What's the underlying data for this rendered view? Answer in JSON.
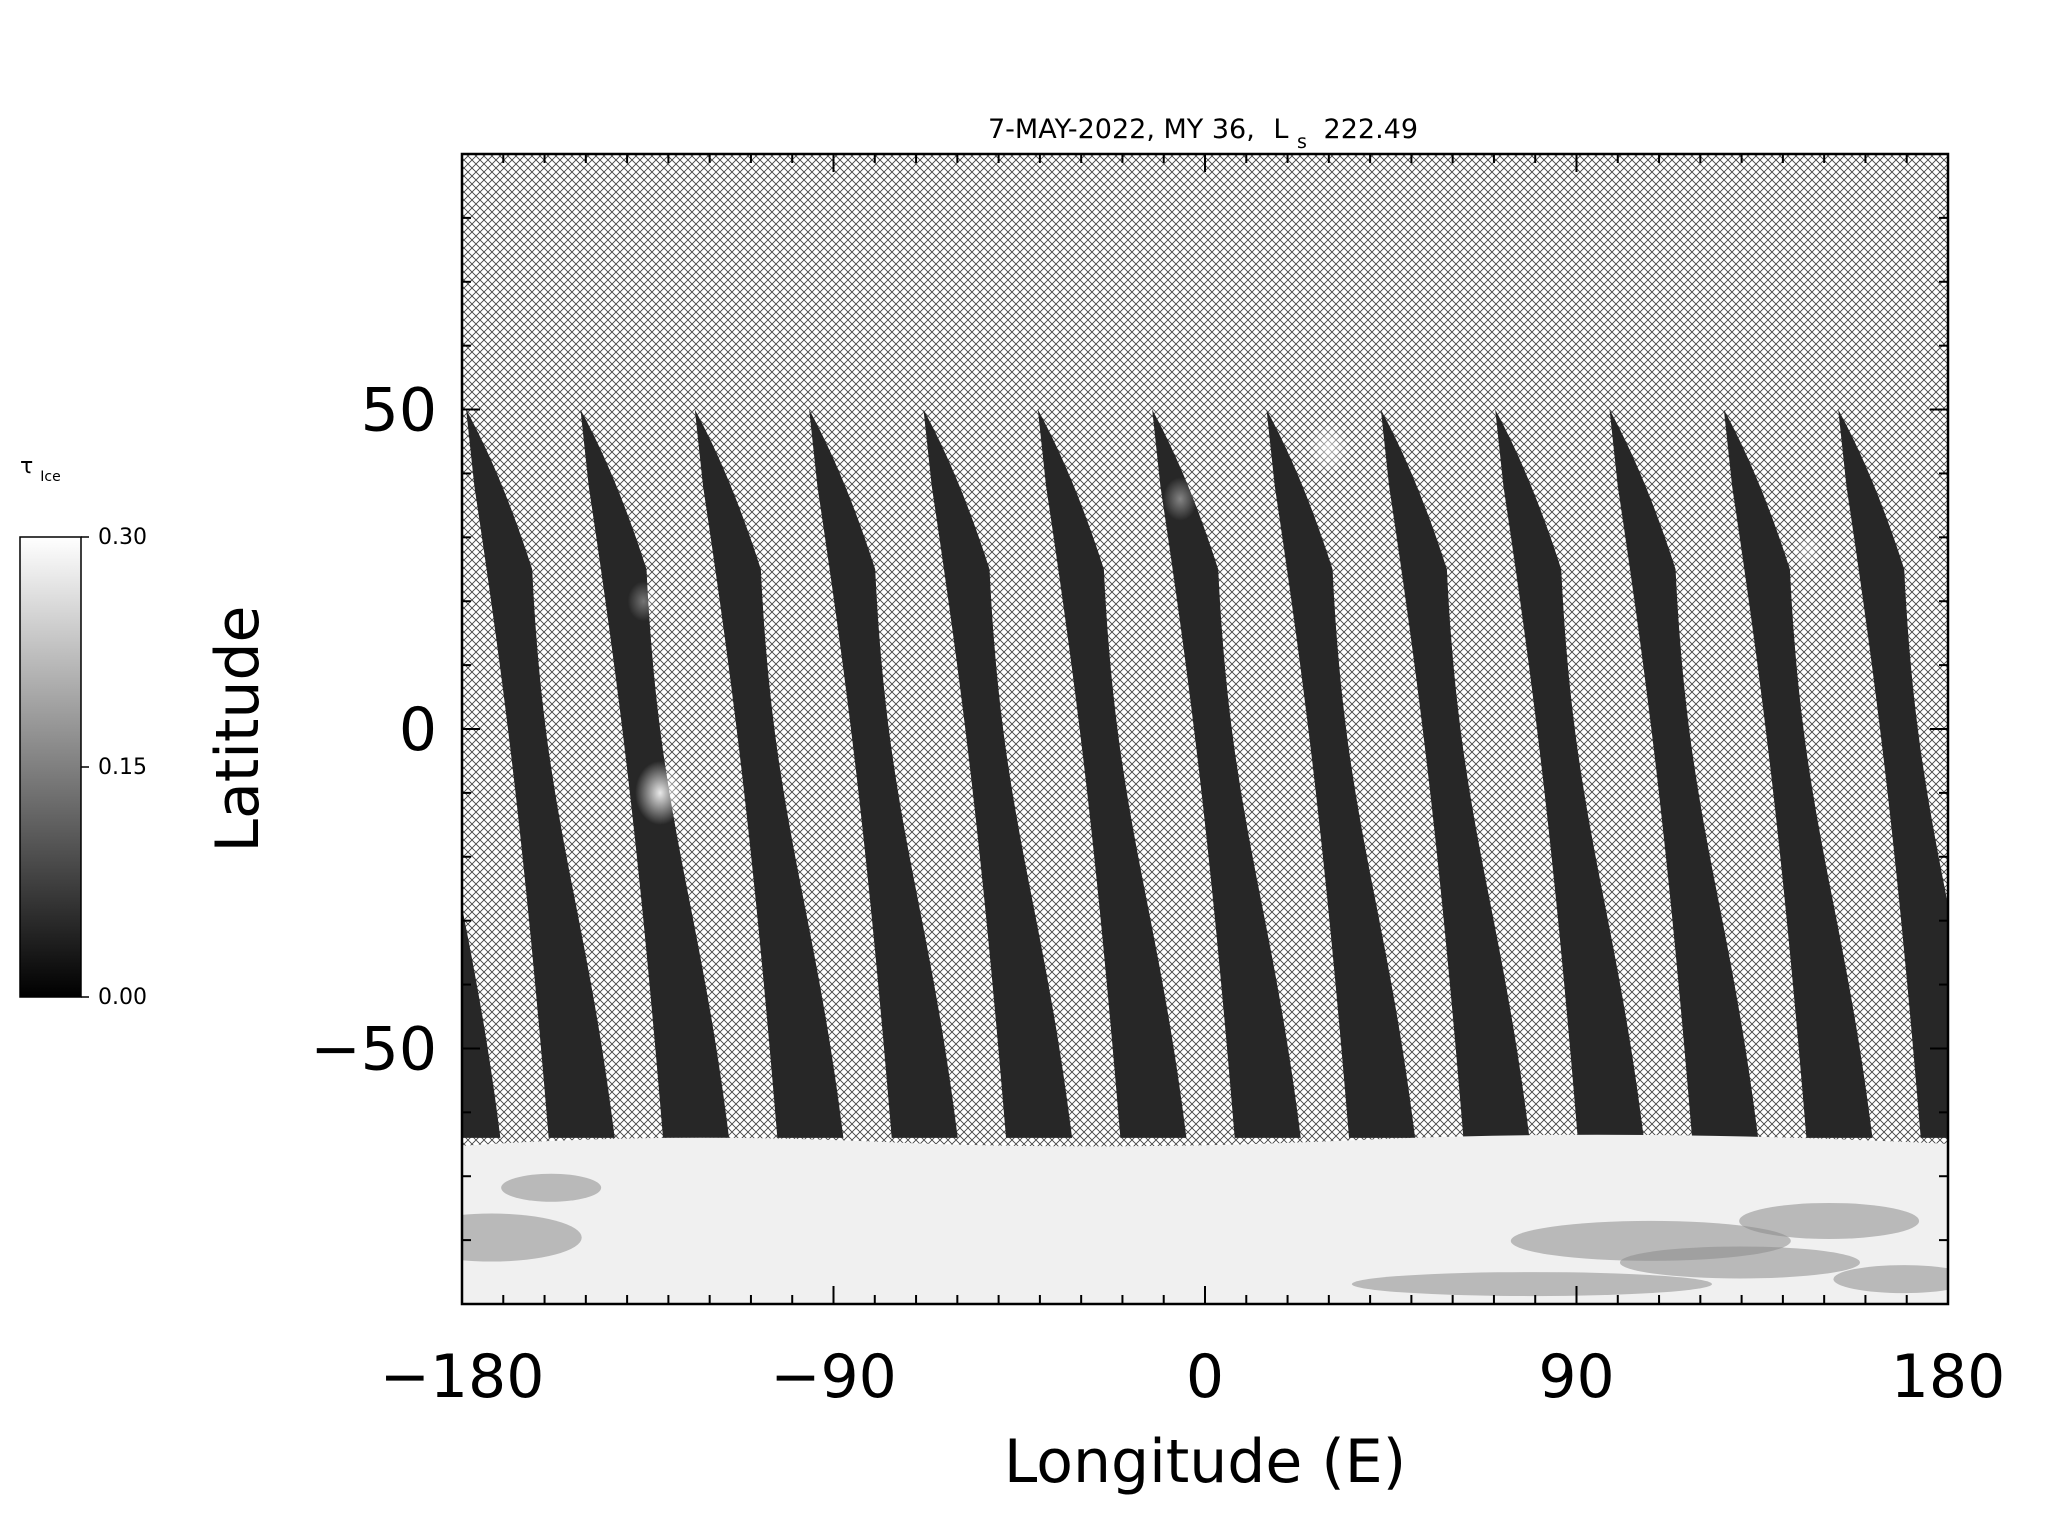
{
  "chart_data": {
    "type": "heatmap",
    "title": {
      "date": "7-MAY-2022, MY 36,",
      "ls_symbol": "L",
      "ls_subscript": "s",
      "ls_value": "222.49"
    },
    "xlabel": "Longitude (E)",
    "ylabel": "Latitude",
    "xlim": [
      -180,
      180
    ],
    "ylim": [
      -90,
      90
    ],
    "x_ticks": [
      {
        "value": -180,
        "label": "−180"
      },
      {
        "value": -90,
        "label": "−90"
      },
      {
        "value": 0,
        "label": "0"
      },
      {
        "value": 90,
        "label": "90"
      },
      {
        "value": 180,
        "label": "180"
      }
    ],
    "y_ticks": [
      {
        "value": 50,
        "label": "50"
      },
      {
        "value": 0,
        "label": "0"
      },
      {
        "value": -50,
        "label": "−50"
      }
    ],
    "x_minor_step": 10,
    "y_minor_step": 10,
    "no_data_pattern": "crosshatch",
    "colorbar": {
      "label_symbol": "τ",
      "label_subscript": "Ice",
      "min": 0.0,
      "max": 0.3,
      "ticks": [
        {
          "value": 0.3,
          "label": "0.30"
        },
        {
          "value": 0.15,
          "label": "0.15"
        },
        {
          "value": 0.0,
          "label": "0.00"
        }
      ],
      "colormap": "grayscale",
      "low_color": "#000000",
      "high_color": "#ffffff"
    },
    "swaths": {
      "count": 13,
      "north_edge_lat": 50,
      "south_edge_lat": -64,
      "width_deg": 16,
      "spacing_deg": 27.7,
      "first_north_lon": -179,
      "tilt_deg": 20,
      "mean_ice_tau": 0.02
    },
    "south_polar_hood": {
      "lat_from": -90,
      "lat_to": -64,
      "mean_ice_tau": 0.28
    },
    "bright_features": [
      {
        "lon": -132,
        "lat": -10,
        "ice_tau": 0.25
      },
      {
        "lon": -136,
        "lat": 20,
        "ice_tau": 0.1
      },
      {
        "lon": -6,
        "lat": 36,
        "ice_tau": 0.12
      },
      {
        "lon": 30,
        "lat": 44,
        "ice_tau": 0.18
      },
      {
        "lon": 146,
        "lat": 28,
        "ice_tau": 0.1
      }
    ]
  }
}
